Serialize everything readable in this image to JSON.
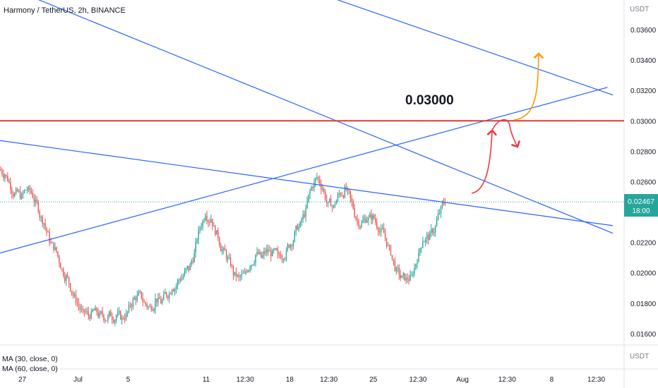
{
  "header": {
    "title": "Harmony / TetherUS, 2h, BINANCE"
  },
  "indicators": {
    "ma30": "MA (30, close, 0)",
    "ma60": "MA (60, close, 0)"
  },
  "price_axis_currency": "USDT",
  "volume_axis_currency": "USDT",
  "last_price": {
    "value": "0.02467",
    "countdown": "18:00",
    "numeric": 0.02467
  },
  "colors": {
    "up_candle": "#26a69a",
    "down_candle": "#ef5350",
    "trendline": "#2962ff",
    "resistance": "#e53935",
    "annotation_red": "#f23645",
    "annotation_orange": "#ff9800",
    "last_price_tag": "#26a69a"
  },
  "chart_data": {
    "type": "candlestick",
    "symbol": "Harmony / TetherUS",
    "interval": "2h",
    "exchange": "BINANCE",
    "y_ticks": [
      "0.03600",
      "0.03400",
      "0.03200",
      "0.03000",
      "0.02800",
      "0.02600",
      "0.02400",
      "0.02200",
      "0.02000",
      "0.01800",
      "0.01600"
    ],
    "y_tick_values": [
      0.036,
      0.034,
      0.032,
      0.03,
      0.028,
      0.026,
      0.024,
      0.022,
      0.02,
      0.018,
      0.016
    ],
    "ylim": [
      0.01525,
      0.03795
    ],
    "x_ticks": [
      "27",
      "Jul",
      "5",
      "11",
      "12:30",
      "18",
      "12:30",
      "25",
      "12:30",
      "Aug",
      "12:30",
      "8",
      "12:30"
    ],
    "x_tick_index": [
      4,
      14,
      23,
      37,
      44,
      52,
      59,
      67,
      75,
      83,
      91,
      99,
      107
    ],
    "xlim": [
      0,
      112
    ],
    "horizontal_level": {
      "value": 0.03,
      "label": "0.03000"
    },
    "trendlines": [
      {
        "name": "descending-resistance-upper",
        "points": [
          [
            50,
            0.0393
          ],
          [
            110,
            0.0317
          ]
        ]
      },
      {
        "name": "descending-resistance-lower",
        "points": [
          [
            0,
            0.039
          ],
          [
            110,
            0.0226
          ]
        ]
      },
      {
        "name": "ascending-support",
        "points": [
          [
            0,
            0.0213
          ],
          [
            109,
            0.0322
          ]
        ]
      },
      {
        "name": "descending-support",
        "points": [
          [
            0,
            0.0287
          ],
          [
            110,
            0.0231
          ]
        ]
      }
    ],
    "closes": [
      0.0265,
      0.0258,
      0.0252,
      0.0249,
      0.0255,
      0.0251,
      0.0243,
      0.0233,
      0.0222,
      0.0215,
      0.0205,
      0.0197,
      0.0188,
      0.018,
      0.0173,
      0.0172,
      0.0175,
      0.0171,
      0.017,
      0.0173,
      0.0172,
      0.0169,
      0.0174,
      0.0181,
      0.0185,
      0.018,
      0.0177,
      0.0182,
      0.0181,
      0.0186,
      0.0191,
      0.0194,
      0.0198,
      0.0203,
      0.0212,
      0.023,
      0.024,
      0.0236,
      0.0225,
      0.0215,
      0.0208,
      0.02,
      0.0196,
      0.0198,
      0.0206,
      0.0212,
      0.021,
      0.0214,
      0.0212,
      0.021,
      0.0212,
      0.0219,
      0.0225,
      0.0231,
      0.024,
      0.0256,
      0.0263,
      0.0256,
      0.0244,
      0.0243,
      0.0252,
      0.0254,
      0.0248,
      0.0236,
      0.0232,
      0.0236,
      0.0236,
      0.023,
      0.0226,
      0.0215,
      0.0204,
      0.0197,
      0.0195,
      0.0197,
      0.021,
      0.0222,
      0.0224,
      0.0228,
      0.024,
      0.0247
    ]
  },
  "drawings": {
    "red_arrow": "projected move up to resistance then rejection",
    "orange_arrow": "projected breakout above resistance"
  }
}
